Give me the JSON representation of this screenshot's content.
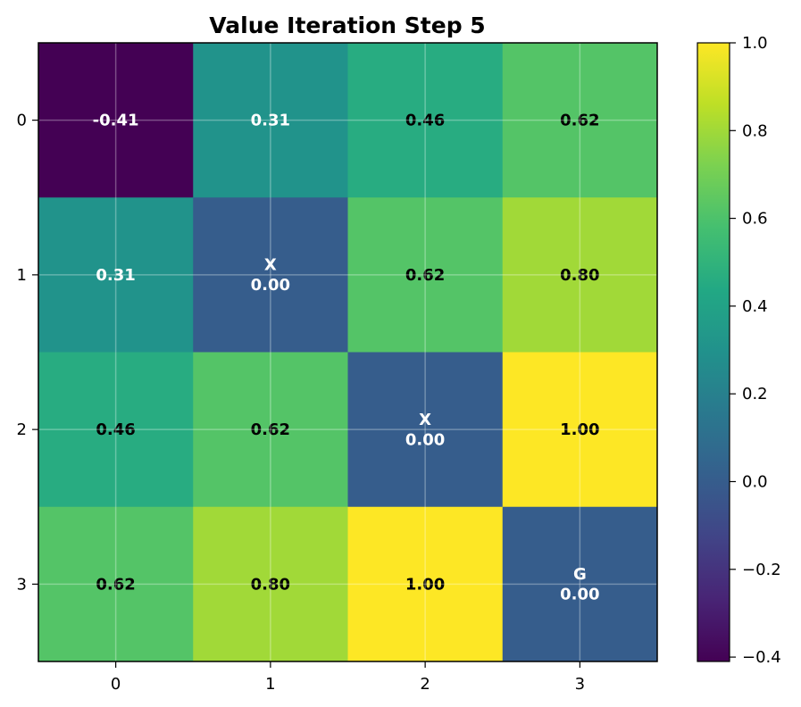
{
  "chart_data": {
    "type": "heatmap",
    "title": "Value Iteration Step 5",
    "colormap": "viridis",
    "x_ticks": [
      "0",
      "1",
      "2",
      "3"
    ],
    "y_ticks": [
      "0",
      "1",
      "2",
      "3"
    ],
    "grid": true,
    "values": [
      [
        -0.41,
        0.31,
        0.46,
        0.62
      ],
      [
        0.31,
        0.0,
        0.62,
        0.8
      ],
      [
        0.46,
        0.62,
        0.0,
        1.0
      ],
      [
        0.62,
        0.8,
        1.0,
        0.0
      ]
    ],
    "cell_text": [
      [
        "-0.41",
        "0.31",
        "0.46",
        "0.62"
      ],
      [
        "0.31",
        "X\n0.00",
        "0.62",
        "0.80"
      ],
      [
        "0.46",
        "0.62",
        "X\n0.00",
        "1.00"
      ],
      [
        "0.62",
        "0.80",
        "1.00",
        "G\n0.00"
      ]
    ],
    "colorbar": {
      "range": [
        -0.41,
        1.0
      ],
      "ticks": [
        -0.4,
        -0.2,
        0.0,
        0.2,
        0.4,
        0.6,
        0.8,
        1.0
      ],
      "tick_labels": [
        "−0.4",
        "−0.2",
        "0.0",
        "0.2",
        "0.4",
        "0.6",
        "0.8",
        "1.0"
      ],
      "position": "right"
    }
  }
}
